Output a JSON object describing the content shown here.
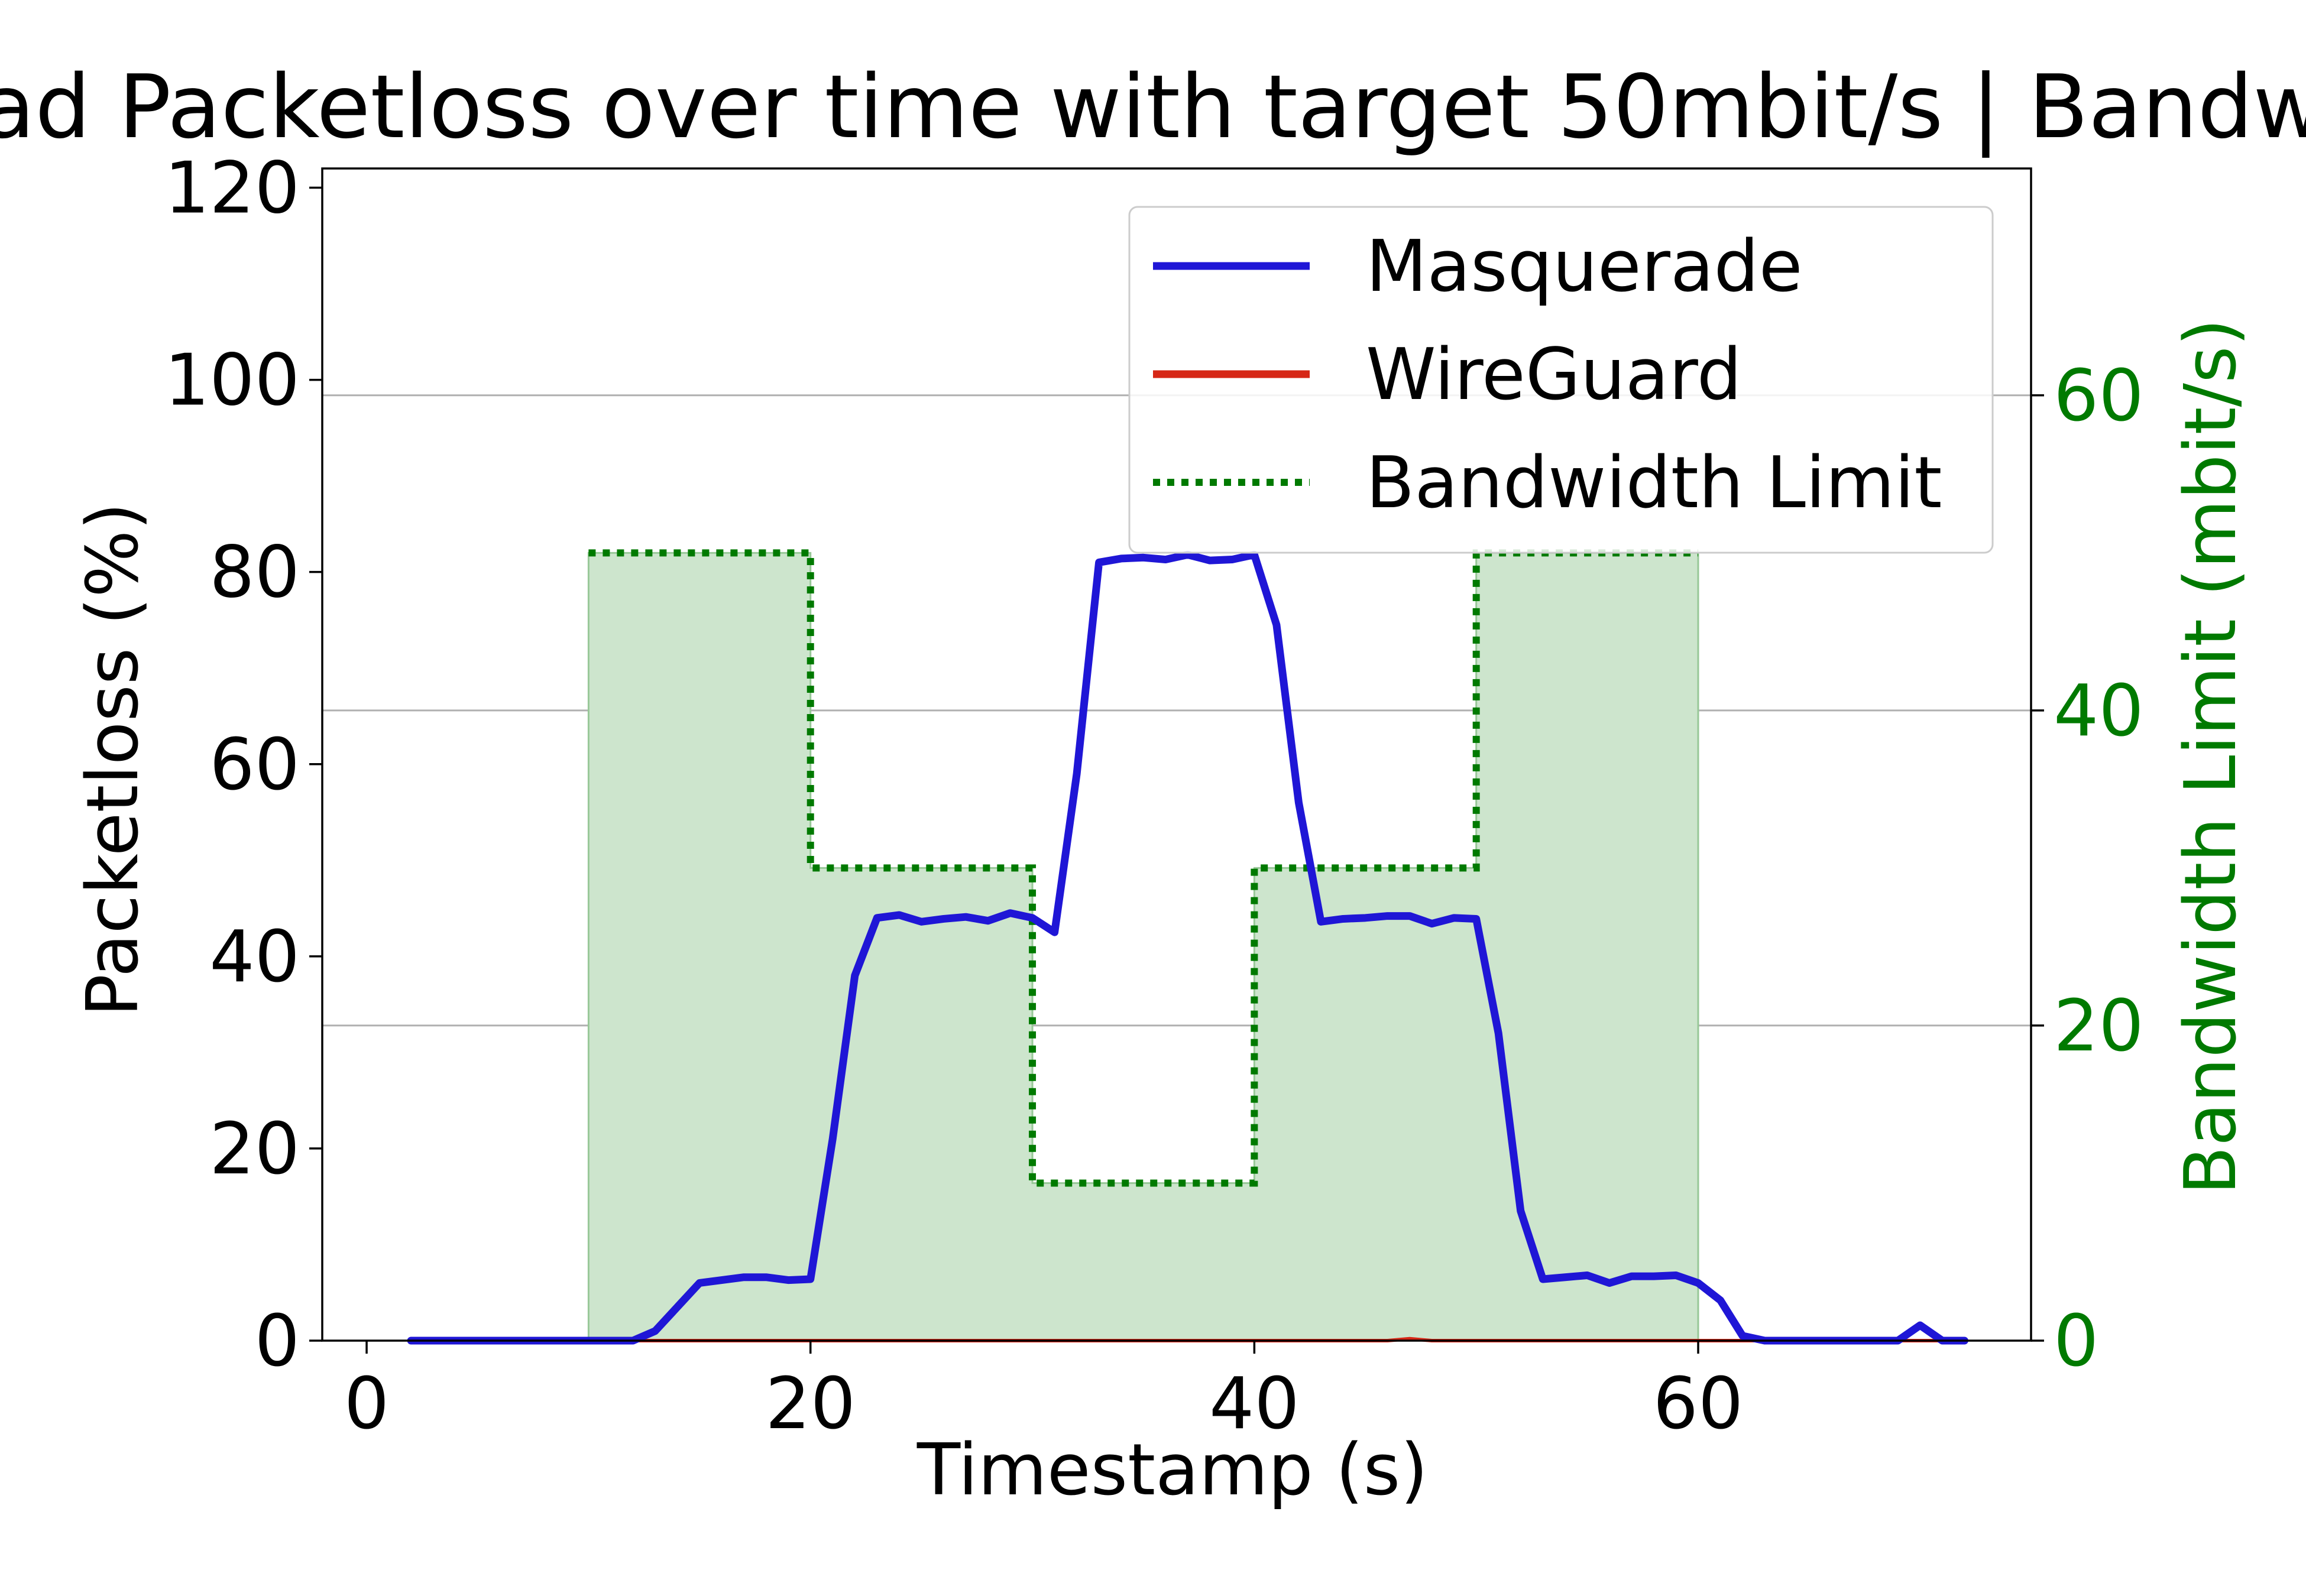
{
  "chart_data": {
    "type": "line",
    "title": "ad Packetloss over time with target 50mbit/s | Bandw",
    "xlabel": "Timestamp (s)",
    "ylabel": "Packetloss (%)",
    "y2label": "Bandwidth Limit (mbit/s)",
    "xlim": [
      -2,
      75
    ],
    "ylim": [
      0,
      122
    ],
    "y2lim": [
      0,
      74.4
    ],
    "x_ticks": [
      0,
      20,
      40,
      60
    ],
    "y_ticks": [
      0,
      20,
      40,
      60,
      80,
      100,
      120
    ],
    "y2_ticks": [
      0,
      20,
      40,
      60
    ],
    "grid": "right-axis horizontal",
    "legend_position": "top-right",
    "colors": {
      "masquerade": "#1f16d6",
      "wireguard": "#d62716",
      "bandwidth": "#007a00",
      "bandwidth_fill": "#cde5cd"
    },
    "series": [
      {
        "name": "Masquerade",
        "axis": "left",
        "x": [
          2,
          3,
          4,
          5,
          6,
          7,
          8,
          9,
          10,
          11,
          12,
          13,
          14,
          15,
          16,
          17,
          18,
          19,
          20,
          21,
          22,
          23,
          24,
          25,
          26,
          27,
          28,
          29,
          30,
          31,
          32,
          33,
          34,
          35,
          36,
          37,
          38,
          39,
          40,
          41,
          42,
          43,
          44,
          45,
          46,
          47,
          48,
          49,
          50,
          51,
          52,
          53,
          54,
          55,
          56,
          57,
          58,
          59,
          60,
          61,
          62,
          63,
          64,
          65,
          66,
          67,
          68,
          69,
          70,
          71,
          72
        ],
        "values": [
          0,
          0,
          0,
          0,
          0,
          0,
          0,
          0,
          0,
          0,
          0,
          1,
          3.5,
          6,
          6.3,
          6.6,
          6.6,
          6.3,
          6.4,
          21,
          38,
          44,
          44.3,
          43.6,
          43.9,
          44.1,
          43.7,
          44.5,
          44,
          42.5,
          59,
          81,
          81.4,
          81.5,
          81.3,
          81.8,
          81.2,
          81.3,
          81.8,
          74.5,
          56,
          43.6,
          43.9,
          44,
          44.2,
          44.2,
          43.4,
          44,
          43.9,
          32,
          13.5,
          6.4,
          6.6,
          6.8,
          6,
          6.7,
          6.7,
          6.8,
          6,
          4.2,
          0.5,
          0,
          0,
          0,
          0,
          0,
          0,
          0,
          1.6,
          0,
          0
        ]
      },
      {
        "name": "WireGuard",
        "axis": "left",
        "x": [
          2,
          12,
          22,
          32,
          42,
          46,
          47,
          48,
          52,
          62,
          72
        ],
        "values": [
          0,
          0,
          0,
          0,
          0,
          0,
          0.2,
          0,
          0,
          0,
          0
        ]
      },
      {
        "name": "Bandwidth Limit",
        "axis": "right",
        "style": "step-dotted-filled",
        "x": [
          10,
          20,
          20,
          30,
          30,
          40,
          40,
          50,
          50,
          60
        ],
        "values": [
          50,
          50,
          30,
          30,
          10,
          10,
          30,
          30,
          50,
          50
        ]
      }
    ]
  }
}
